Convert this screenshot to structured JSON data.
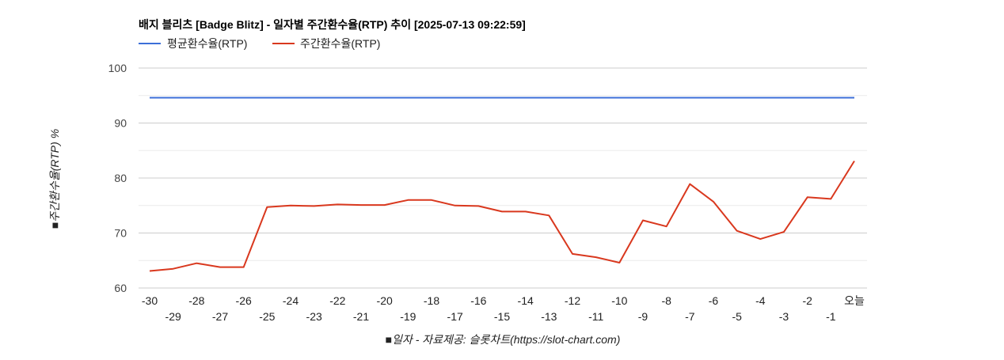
{
  "chart_data": {
    "type": "line",
    "title": "배지 블리츠 [Badge Blitz] - 일자별 주간환수율(RTP) 추이 [2025-07-13 09:22:59]",
    "xlabel": "■일자 - 자료제공: 슬롯차트(https://slot-chart.com)",
    "ylabel": "■주간환수율(RTP) %",
    "ylim": [
      60,
      100
    ],
    "yticks": [
      "60",
      "70",
      "80",
      "90",
      "100"
    ],
    "grid": true,
    "legend_position": "top-left",
    "categories": [
      "-30",
      "-29",
      "-28",
      "-27",
      "-26",
      "-25",
      "-24",
      "-23",
      "-22",
      "-21",
      "-20",
      "-19",
      "-18",
      "-17",
      "-16",
      "-15",
      "-14",
      "-13",
      "-12",
      "-11",
      "-10",
      "-9",
      "-8",
      "-7",
      "-6",
      "-5",
      "-4",
      "-3",
      "-2",
      "-1",
      "오늘"
    ],
    "series": [
      {
        "name": "평균환수율(RTP)",
        "color": "#3c6fd8",
        "values": [
          94.6,
          94.6,
          94.6,
          94.6,
          94.6,
          94.6,
          94.6,
          94.6,
          94.6,
          94.6,
          94.6,
          94.6,
          94.6,
          94.6,
          94.6,
          94.6,
          94.6,
          94.6,
          94.6,
          94.6,
          94.6,
          94.6,
          94.6,
          94.6,
          94.6,
          94.6,
          94.6,
          94.6,
          94.6,
          94.6,
          94.6
        ]
      },
      {
        "name": "주간환수율(RTP)",
        "color": "#d9381e",
        "values": [
          63.1,
          63.5,
          64.5,
          63.8,
          63.8,
          74.7,
          75.0,
          74.9,
          75.2,
          75.1,
          75.1,
          76.0,
          76.0,
          75.0,
          74.9,
          73.9,
          73.9,
          73.2,
          66.2,
          65.6,
          64.6,
          72.3,
          71.2,
          78.9,
          75.7,
          70.4,
          68.9,
          70.2,
          76.5,
          76.2,
          83.1
        ]
      }
    ]
  }
}
